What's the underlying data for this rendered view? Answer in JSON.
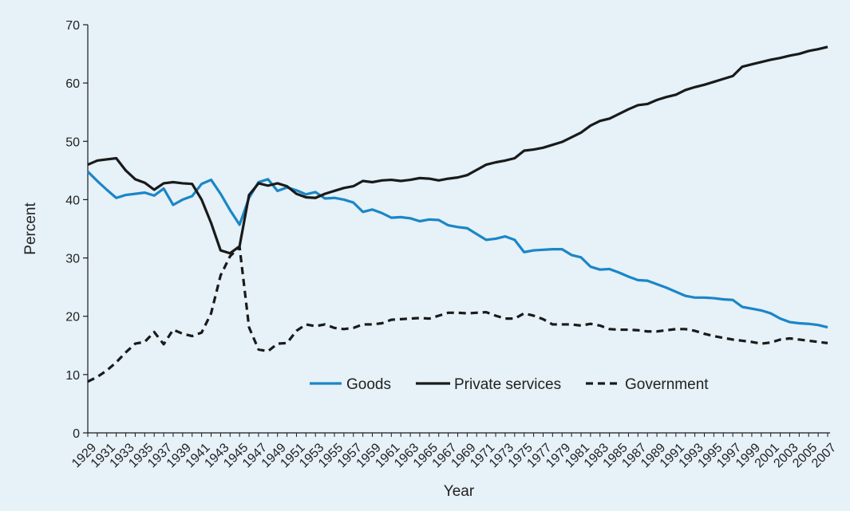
{
  "chart_data": {
    "type": "line",
    "title": "",
    "xlabel": "Year",
    "ylabel": "Percent",
    "ylim": [
      0,
      70
    ],
    "yticks": [
      0,
      10,
      20,
      30,
      40,
      50,
      60,
      70
    ],
    "x": [
      1929,
      1930,
      1931,
      1932,
      1933,
      1934,
      1935,
      1936,
      1937,
      1938,
      1939,
      1940,
      1941,
      1942,
      1943,
      1944,
      1945,
      1946,
      1947,
      1948,
      1949,
      1950,
      1951,
      1952,
      1953,
      1954,
      1955,
      1956,
      1957,
      1958,
      1959,
      1960,
      1961,
      1962,
      1963,
      1964,
      1965,
      1966,
      1967,
      1968,
      1969,
      1970,
      1971,
      1972,
      1973,
      1974,
      1975,
      1976,
      1977,
      1978,
      1979,
      1980,
      1981,
      1982,
      1983,
      1984,
      1985,
      1986,
      1987,
      1988,
      1989,
      1990,
      1991,
      1992,
      1993,
      1994,
      1995,
      1996,
      1997,
      1998,
      1999,
      2000,
      2001,
      2002,
      2003,
      2004,
      2005,
      2006,
      2007
    ],
    "x_tick_labels": [
      "1929",
      "1931",
      "1933",
      "1935",
      "1937",
      "1939",
      "1941",
      "1943",
      "1945",
      "1947",
      "1949",
      "1951",
      "1953",
      "1955",
      "1957",
      "1959",
      "1961",
      "1963",
      "1965",
      "1967",
      "1969",
      "1971",
      "1973",
      "1975",
      "1977",
      "1979",
      "1981",
      "1983",
      "1985",
      "1987",
      "1989",
      "1991",
      "1993",
      "1995",
      "1997",
      "1999",
      "2001",
      "2003",
      "2005",
      "2007"
    ],
    "grid": false,
    "legend_position": "bottom-center",
    "series": [
      {
        "name": "Goods",
        "color": "#1b86c6",
        "dash": "solid",
        "values": [
          44.8,
          43.2,
          41.7,
          40.3,
          40.8,
          41.0,
          41.2,
          40.7,
          41.9,
          39.1,
          40.0,
          40.6,
          42.7,
          43.4,
          41.0,
          38.2,
          35.7,
          40.3,
          43.0,
          43.5,
          41.5,
          42.1,
          41.6,
          40.9,
          41.3,
          40.2,
          40.3,
          40.0,
          39.5,
          37.9,
          38.3,
          37.7,
          36.9,
          37.0,
          36.8,
          36.3,
          36.6,
          36.5,
          35.6,
          35.3,
          35.1,
          34.1,
          33.1,
          33.3,
          33.7,
          33.1,
          31.0,
          31.3,
          31.4,
          31.5,
          31.5,
          30.5,
          30.1,
          28.5,
          28.0,
          28.1,
          27.5,
          26.8,
          26.2,
          26.1,
          25.5,
          24.9,
          24.2,
          23.5,
          23.2,
          23.2,
          23.1,
          22.9,
          22.8,
          21.6,
          21.3,
          21.0,
          20.5,
          19.6,
          19.0,
          18.8,
          18.7,
          18.5,
          18.1
        ]
      },
      {
        "name": "Private services",
        "color": "#1a1a1a",
        "dash": "solid",
        "values": [
          46.0,
          46.7,
          46.9,
          47.1,
          45.0,
          43.5,
          42.9,
          41.7,
          42.8,
          43.0,
          42.8,
          42.7,
          40.0,
          36.0,
          31.3,
          30.8,
          32.0,
          40.8,
          42.8,
          42.4,
          42.8,
          42.3,
          41.0,
          40.4,
          40.3,
          41.0,
          41.5,
          42.0,
          42.3,
          43.2,
          43.0,
          43.3,
          43.4,
          43.2,
          43.4,
          43.7,
          43.6,
          43.3,
          43.6,
          43.8,
          44.2,
          45.1,
          46.0,
          46.4,
          46.7,
          47.1,
          48.4,
          48.6,
          48.9,
          49.4,
          49.9,
          50.7,
          51.5,
          52.7,
          53.5,
          53.9,
          54.7,
          55.5,
          56.2,
          56.4,
          57.1,
          57.6,
          58.0,
          58.8,
          59.3,
          59.7,
          60.2,
          60.7,
          61.2,
          62.8,
          63.2,
          63.6,
          64.0,
          64.3,
          64.7,
          65.0,
          65.5,
          65.8,
          66.2
        ]
      },
      {
        "name": "Government",
        "color": "#1a1a1a",
        "dash": "dashed",
        "values": [
          8.8,
          9.6,
          10.7,
          12.1,
          13.8,
          15.3,
          15.6,
          17.3,
          15.2,
          17.7,
          17.0,
          16.6,
          17.2,
          20.5,
          27.0,
          30.3,
          31.9,
          18.1,
          14.3,
          14.0,
          15.3,
          15.4,
          17.5,
          18.6,
          18.3,
          18.6,
          18.0,
          17.8,
          18.0,
          18.6,
          18.6,
          18.8,
          19.4,
          19.5,
          19.6,
          19.7,
          19.6,
          20.1,
          20.6,
          20.6,
          20.5,
          20.6,
          20.7,
          20.1,
          19.6,
          19.6,
          20.5,
          20.1,
          19.5,
          18.6,
          18.6,
          18.6,
          18.4,
          18.7,
          18.4,
          17.8,
          17.7,
          17.7,
          17.6,
          17.4,
          17.4,
          17.6,
          17.8,
          17.8,
          17.5,
          17.0,
          16.6,
          16.3,
          16.0,
          15.8,
          15.6,
          15.3,
          15.5,
          16.0,
          16.2,
          16.0,
          15.8,
          15.6,
          15.4
        ]
      }
    ]
  }
}
